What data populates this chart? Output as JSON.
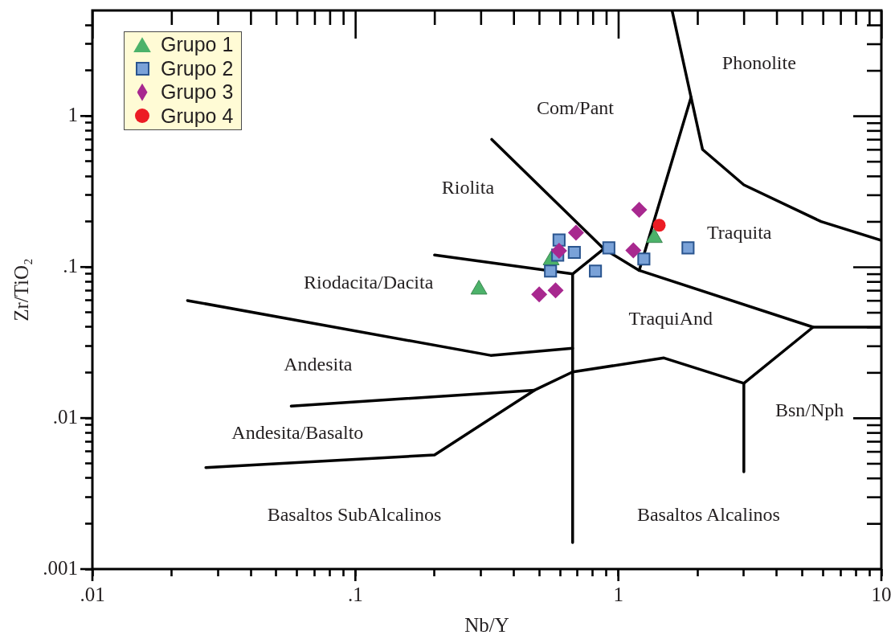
{
  "chart_data": {
    "type": "scatter",
    "xlabel": "Nb/Y",
    "ylabel": "Zr/TiO₂",
    "log": "xy",
    "xlim": [
      0.01,
      10
    ],
    "ylim": [
      0.001,
      5
    ],
    "xticks": [
      {
        "value": 0.01,
        "label": ".01"
      },
      {
        "value": 0.02,
        "label": null
      },
      {
        "value": 0.03,
        "label": null
      },
      {
        "value": 0.04,
        "label": null
      },
      {
        "value": 0.05,
        "label": null
      },
      {
        "value": 0.06,
        "label": null
      },
      {
        "value": 0.07,
        "label": null
      },
      {
        "value": 0.08,
        "label": null
      },
      {
        "value": 0.09,
        "label": null
      },
      {
        "value": 0.1,
        "label": ".1"
      },
      {
        "value": 0.2,
        "label": null
      },
      {
        "value": 0.3,
        "label": null
      },
      {
        "value": 0.4,
        "label": null
      },
      {
        "value": 0.5,
        "label": null
      },
      {
        "value": 0.6,
        "label": null
      },
      {
        "value": 0.7,
        "label": null
      },
      {
        "value": 0.8,
        "label": null
      },
      {
        "value": 0.9,
        "label": null
      },
      1,
      {
        "value": 2,
        "label": null
      },
      {
        "value": 3,
        "label": null
      },
      {
        "value": 4,
        "label": null
      },
      {
        "value": 5,
        "label": null
      },
      {
        "value": 6,
        "label": null
      },
      {
        "value": 7,
        "label": null
      },
      {
        "value": 8,
        "label": null
      },
      {
        "value": 9,
        "label": null
      },
      10
    ],
    "yticks": [
      {
        "value": 0.001,
        "label": ".001"
      },
      {
        "value": 0.002,
        "label": null
      },
      {
        "value": 0.003,
        "label": null
      },
      {
        "value": 0.004,
        "label": null
      },
      {
        "value": 0.005,
        "label": null
      },
      {
        "value": 0.006,
        "label": null
      },
      {
        "value": 0.007,
        "label": null
      },
      {
        "value": 0.008,
        "label": null
      },
      {
        "value": 0.009,
        "label": null
      },
      {
        "value": 0.01,
        "label": ".01"
      },
      {
        "value": 0.02,
        "label": null
      },
      {
        "value": 0.03,
        "label": null
      },
      {
        "value": 0.04,
        "label": null
      },
      {
        "value": 0.05,
        "label": null
      },
      {
        "value": 0.06,
        "label": null
      },
      {
        "value": 0.07,
        "label": null
      },
      {
        "value": 0.08,
        "label": null
      },
      {
        "value": 0.09,
        "label": null
      },
      {
        "value": 0.1,
        "label": ".1"
      },
      {
        "value": 0.2,
        "label": null
      },
      {
        "value": 0.3,
        "label": null
      },
      {
        "value": 0.4,
        "label": null
      },
      {
        "value": 0.5,
        "label": null
      },
      {
        "value": 0.6,
        "label": null
      },
      {
        "value": 0.7,
        "label": null
      },
      {
        "value": 0.8,
        "label": null
      },
      {
        "value": 0.9,
        "label": null
      },
      1,
      {
        "value": 2,
        "label": null
      },
      {
        "value": 3,
        "label": null
      },
      {
        "value": 4,
        "label": null
      }
    ],
    "legend": "top left",
    "series": [
      {
        "type": "line",
        "color": "#000000",
        "marker": "none",
        "x": [
          0.33,
          0.88
        ],
        "values": [
          0.7,
          0.132
        ]
      },
      {
        "type": "line",
        "color": "#000000",
        "marker": "none",
        "x": [
          0.2,
          0.67,
          0.88,
          1.2,
          5.5,
          10
        ],
        "values": [
          0.12,
          0.09,
          0.132,
          0.095,
          0.04,
          0.04
        ]
      },
      {
        "type": "line",
        "color": "#000000",
        "marker": "none",
        "x": [
          0.67,
          0.67
        ],
        "values": [
          0.09,
          0.0015
        ]
      },
      {
        "type": "line",
        "color": "#000000",
        "marker": "none",
        "x": [
          1.6,
          1.89,
          2.09,
          3.0,
          5.9,
          10
        ],
        "values": [
          5,
          1.33,
          0.6,
          0.35,
          0.2,
          0.15
        ]
      },
      {
        "type": "line",
        "color": "#000000",
        "marker": "none",
        "x": [
          1.2,
          1.89
        ],
        "values": [
          0.095,
          1.33
        ]
      },
      {
        "type": "line",
        "color": "#000000",
        "marker": "none",
        "x": [
          0.027,
          0.2,
          0.48,
          0.67,
          1.49,
          3.0,
          5.5
        ],
        "values": [
          0.0047,
          0.0057,
          0.0153,
          0.0202,
          0.025,
          0.017,
          0.04
        ]
      },
      {
        "type": "line",
        "color": "#000000",
        "marker": "none",
        "x": [
          3.0,
          3.0
        ],
        "values": [
          0.017,
          0.0044
        ]
      },
      {
        "type": "line",
        "color": "#000000",
        "marker": "none",
        "x": [
          0.057,
          0.48
        ],
        "values": [
          0.012,
          0.0153
        ]
      },
      {
        "type": "line",
        "color": "#000000",
        "marker": "none",
        "x": [
          0.023,
          0.327,
          0.67
        ],
        "values": [
          0.06,
          0.026,
          0.029
        ]
      },
      {
        "name": "Grupo 1",
        "color": "#4cb26a",
        "marker": "triangle",
        "x": [
          0.555,
          0.295,
          1.37
        ],
        "values": [
          0.111,
          0.071,
          0.156
        ]
      },
      {
        "name": "Grupo 2",
        "color": "#7aa2d8",
        "marker": "square",
        "x": [
          0.595,
          0.588,
          0.68,
          0.552,
          0.92,
          0.818,
          1.25,
          1.84
        ],
        "values": [
          0.151,
          0.12,
          0.125,
          0.094,
          0.134,
          0.094,
          0.113,
          0.134
        ]
      },
      {
        "name": "Grupo 3",
        "color": "#a8288f",
        "marker": "diamond",
        "x": [
          0.69,
          0.595,
          0.5,
          0.577,
          1.14,
          1.2
        ],
        "values": [
          0.169,
          0.128,
          0.066,
          0.07,
          0.129,
          0.239
        ]
      },
      {
        "name": "Grupo 4",
        "color": "#ec1c24",
        "marker": "circle",
        "x": [
          1.43
        ],
        "values": [
          0.189
        ]
      }
    ],
    "annotations": [
      "Phonolite",
      "Com/Pant",
      "Riolita",
      "Traquita",
      "Riodacita/Dacita",
      "TraquiAnd",
      "Andesita",
      "Bsn/Nph",
      "Andesita/Basalto",
      "Basaltos SubAlcalinos",
      "Basaltos Alcalinos"
    ]
  }
}
